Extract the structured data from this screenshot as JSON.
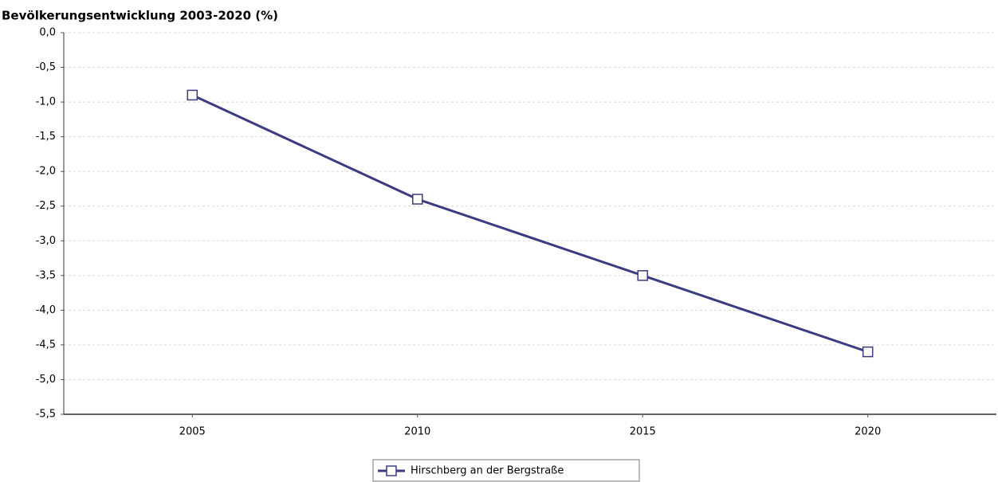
{
  "chart_data": {
    "type": "line",
    "title": "Bevölkerungsentwicklung 2003-2020 (%)",
    "categories": [
      "2005",
      "2010",
      "2015",
      "2020"
    ],
    "series": [
      {
        "name": "Hirschberg an der Bergstraße",
        "color": "#3b3b82",
        "values": [
          -0.9,
          -2.4,
          -3.5,
          -4.6
        ]
      }
    ],
    "ylim": [
      -5.5,
      0
    ],
    "yticks": [
      {
        "value": 0,
        "label": "0,0"
      },
      {
        "value": -0.5,
        "label": "-0,5"
      },
      {
        "value": -1,
        "label": "-1,0"
      },
      {
        "value": -1.5,
        "label": "-1,5"
      },
      {
        "value": -2,
        "label": "-2,0"
      },
      {
        "value": -2.5,
        "label": "-2,5"
      },
      {
        "value": -3,
        "label": "-3,0"
      },
      {
        "value": -3.5,
        "label": "-3,5"
      },
      {
        "value": -4,
        "label": "-4,0"
      },
      {
        "value": -4.5,
        "label": "-4,5"
      },
      {
        "value": -5,
        "label": "-5,0"
      },
      {
        "value": -5.5,
        "label": "-5,5"
      }
    ],
    "grid": true
  }
}
